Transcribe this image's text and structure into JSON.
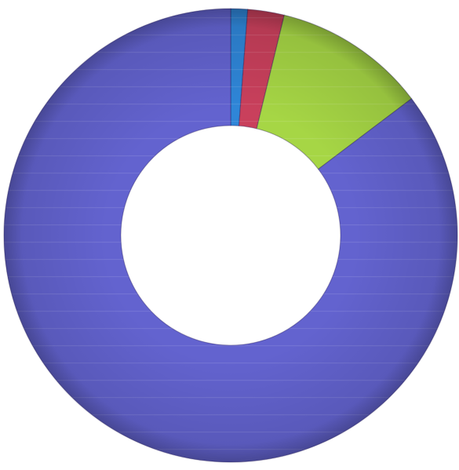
{
  "chart_data": {
    "type": "pie",
    "variant": "donut",
    "categories": [
      "",
      "",
      "",
      ""
    ],
    "values": [
      1.2,
      2.6,
      10.9,
      85.3
    ],
    "colors": [
      "#2f86d8",
      "#c9405c",
      "#a6d645",
      "#6363cf"
    ],
    "start_angle_deg": 0,
    "direction": "clockwise",
    "title": "",
    "legend": "none"
  }
}
